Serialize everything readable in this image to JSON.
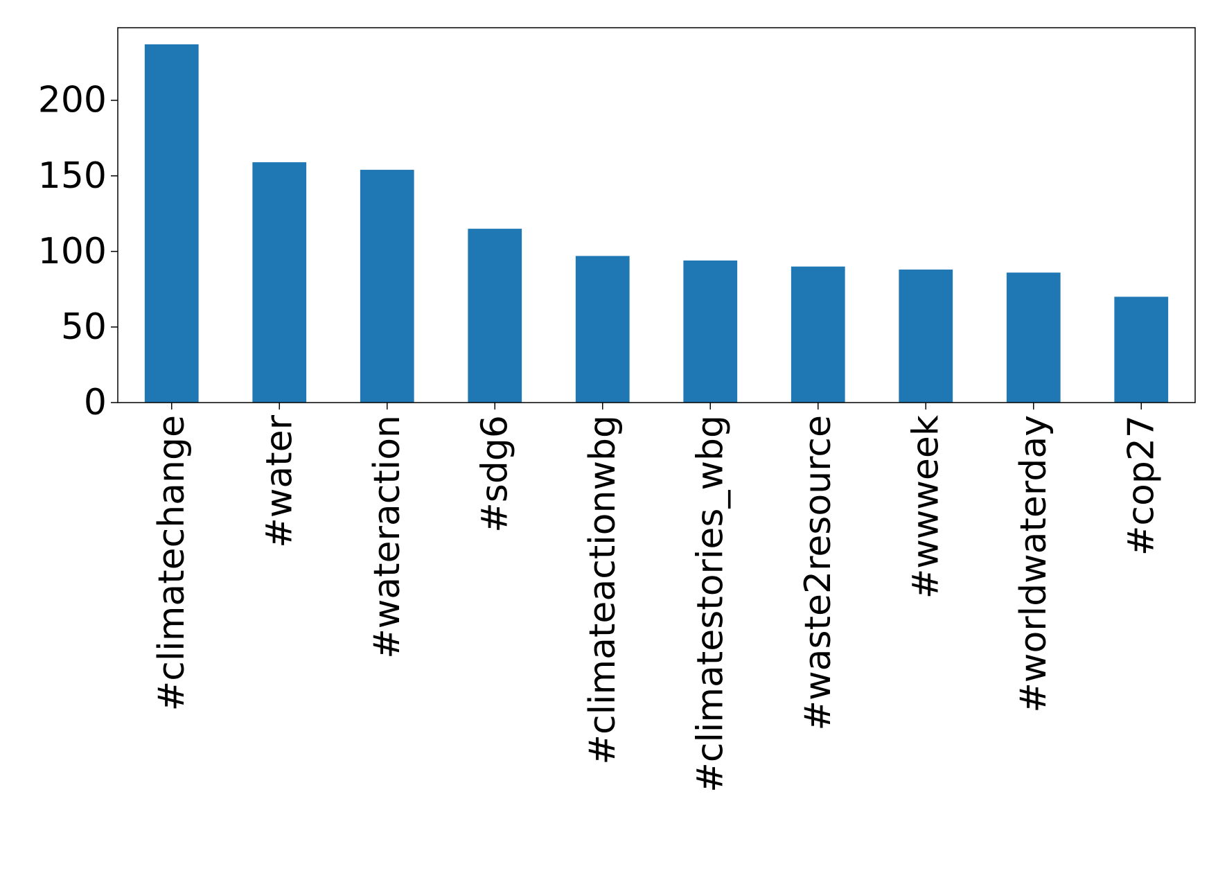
{
  "chart_data": {
    "type": "bar",
    "title": "",
    "xlabel": "",
    "ylabel": "",
    "categories": [
      "#climatechange",
      "#water",
      "#wateraction",
      "#sdg6",
      "#climateactionwbg",
      "#climatestories_wbg",
      "#waste2resource",
      "#wwweek",
      "#worldwaterday",
      "#cop27"
    ],
    "values": [
      237,
      159,
      154,
      115,
      97,
      94,
      90,
      88,
      86,
      70
    ],
    "ylim": [
      0,
      248
    ],
    "yticks": [
      0,
      50,
      100,
      150,
      200
    ],
    "grid": false,
    "legend": "none",
    "bar_color": "#1f77b4"
  }
}
